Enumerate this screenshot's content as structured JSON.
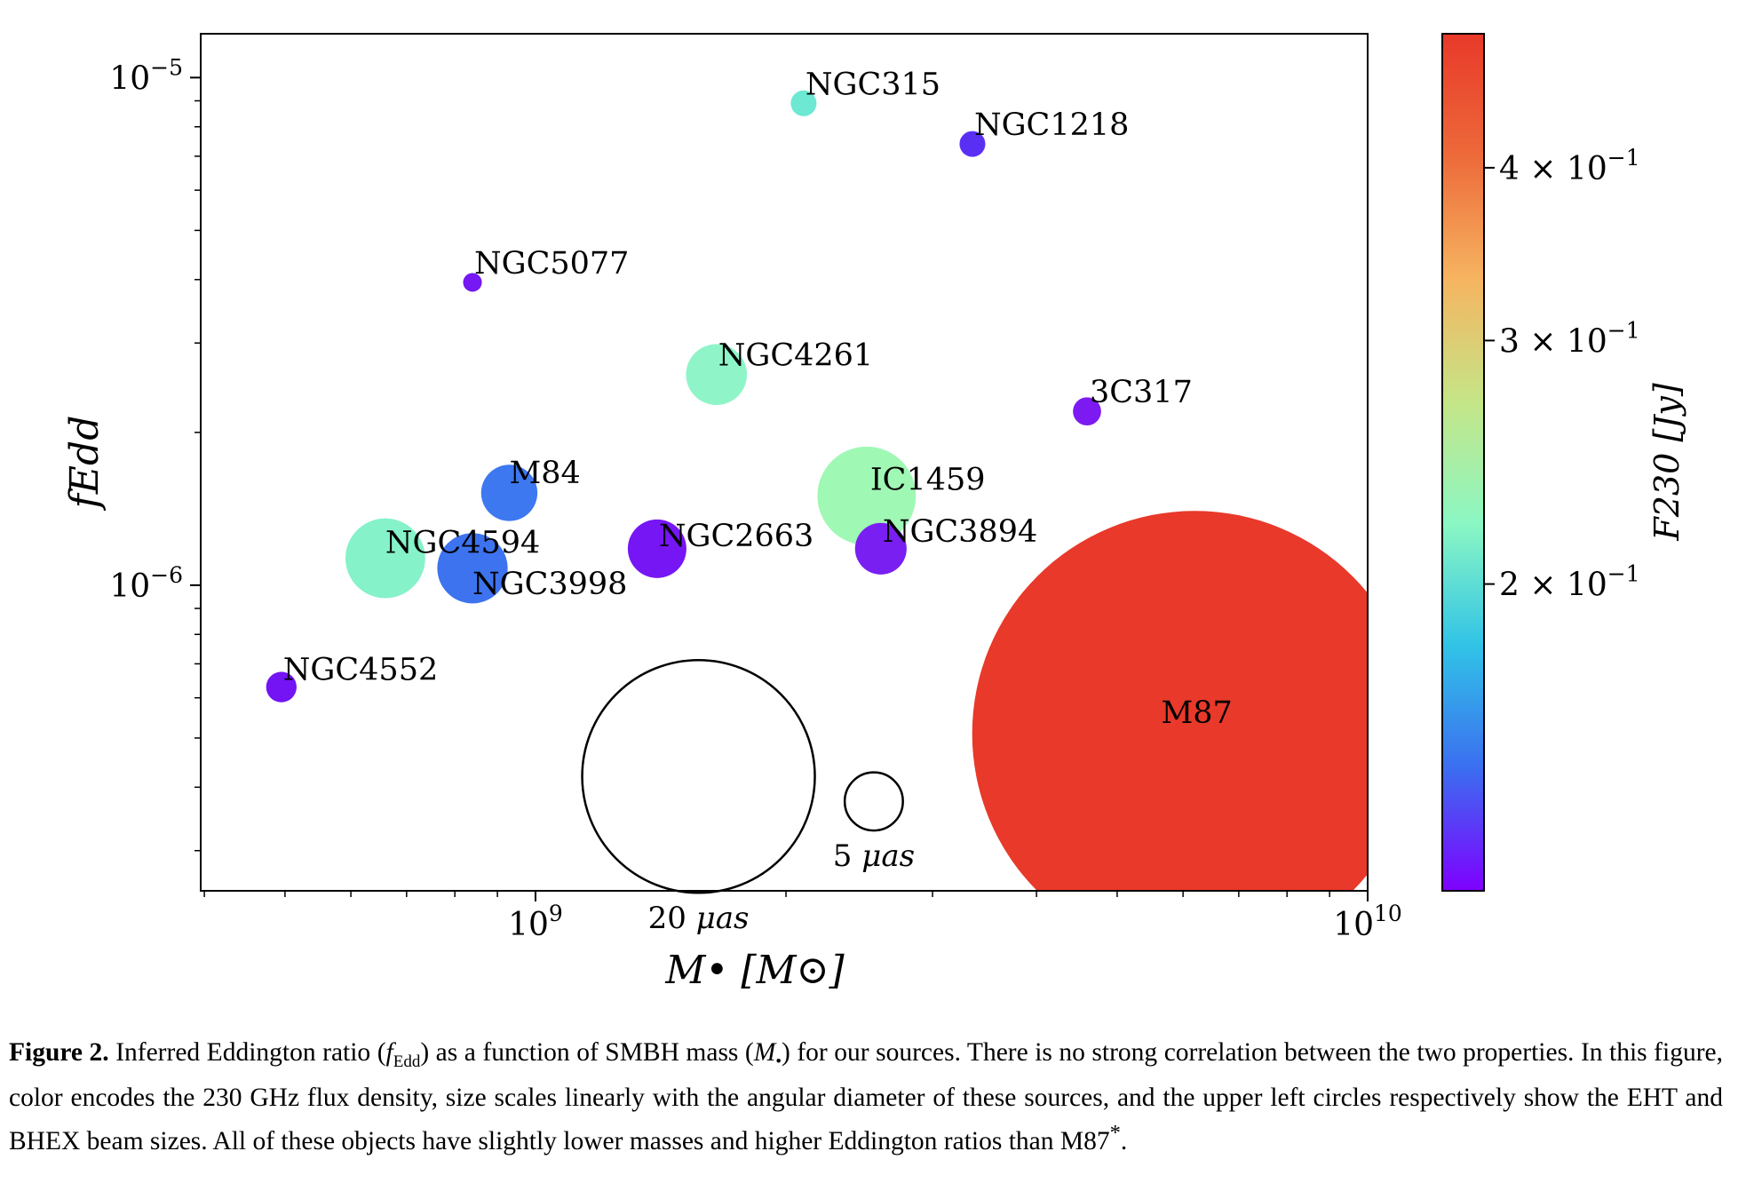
{
  "chart_data": {
    "type": "scatter",
    "x_scale": "log",
    "y_scale": "log",
    "xlabel": "M• [M⊙]",
    "ylabel": "fEdd",
    "xlim": [
      396000000.0,
      10000000000.0
    ],
    "ylim": [
      2.5e-07,
      1.22e-05
    ],
    "x_ticks": [
      {
        "label_base": "10",
        "label_exp": "9",
        "value": 1000000000.0
      },
      {
        "label_base": "10",
        "label_exp": "10",
        "value": 10000000000.0
      }
    ],
    "y_ticks": [
      {
        "label_base": "10",
        "label_exp": "−5",
        "value": 1e-05
      },
      {
        "label_base": "10",
        "label_exp": "−6",
        "value": 1e-06
      }
    ],
    "colorbar": {
      "label": "F230 [Jy]",
      "range": [
        0.12,
        0.5
      ],
      "cmap": [
        "#7f00ff",
        "#3b6ef0",
        "#31c3e7",
        "#8bf7c3",
        "#c5e587",
        "#f6b460",
        "#ed6a3a",
        "#e8392a"
      ],
      "ticks": [
        {
          "value": 0.2,
          "label": "2 × 10",
          "exp": "−1"
        },
        {
          "value": 0.3,
          "label": "3 × 10",
          "exp": "−1"
        },
        {
          "value": 0.4,
          "label": "4 × 10",
          "exp": "−1"
        }
      ]
    },
    "points": [
      {
        "name": "NGC315",
        "mass": 2100000000.0,
        "fedd": 8.9e-06,
        "flux": 0.18,
        "color": "#6de8d3",
        "size_uas": 1.1,
        "label_dx": 2,
        "label_dy": -10,
        "label_anchor": "start"
      },
      {
        "name": "NGC1218",
        "mass": 3350000000.0,
        "fedd": 7.4e-06,
        "flux": 0.12,
        "color": "#5a2ff4",
        "size_uas": 1.1,
        "label_dx": 2,
        "label_dy": -10,
        "label_anchor": "start"
      },
      {
        "name": "NGC5077",
        "mass": 840000000.0,
        "fedd": 3.95e-06,
        "flux": 0.12,
        "color": "#7518f3",
        "size_uas": 0.8,
        "label_dx": 2,
        "label_dy": -10,
        "label_anchor": "start"
      },
      {
        "name": "NGC4261",
        "mass": 1650000000.0,
        "fedd": 2.6e-06,
        "flux": 0.21,
        "color": "#8ff5c8",
        "size_uas": 2.6,
        "label_dx": 2,
        "label_dy": -10,
        "label_anchor": "start"
      },
      {
        "name": "3C317",
        "mass": 4600000000.0,
        "fedd": 2.2e-06,
        "flux": 0.12,
        "color": "#7d1af1",
        "size_uas": 1.2,
        "label_dx": 3,
        "label_dy": -10,
        "label_anchor": "start"
      },
      {
        "name": "M84",
        "mass": 930000000.0,
        "fedd": 1.52e-06,
        "flux": 0.15,
        "color": "#3d78f0",
        "size_uas": 2.4,
        "label_dx": 0,
        "label_dy": -11,
        "label_anchor": "start"
      },
      {
        "name": "NGC4594",
        "mass": 660000000.0,
        "fedd": 1.13e-06,
        "flux": 0.21,
        "color": "#85f2c9",
        "size_uas": 3.4,
        "label_dx": 0,
        "label_dy": -6,
        "label_anchor": "start"
      },
      {
        "name": "NGC3998",
        "mass": 840000000.0,
        "fedd": 1.08e-06,
        "flux": 0.15,
        "color": "#3d73ef",
        "size_uas": 3.0,
        "label_dx": 0,
        "label_dy": 29,
        "label_anchor": "start"
      },
      {
        "name": "NGC2663",
        "mass": 1400000000.0,
        "fedd": 1.18e-06,
        "flux": 0.12,
        "color": "#7616f5",
        "size_uas": 2.5,
        "label_dx": 2,
        "label_dy": -3,
        "label_anchor": "start"
      },
      {
        "name": "NGC3894",
        "mass": 2600000000.0,
        "fedd": 1.18e-06,
        "flux": 0.12,
        "color": "#7a1ff2",
        "size_uas": 2.2,
        "label_dx": 2,
        "label_dy": -8,
        "label_anchor": "start"
      },
      {
        "name": "IC1459",
        "mass": 2500000000.0,
        "fedd": 1.5e-06,
        "flux": 0.24,
        "color": "#a0f8b5",
        "size_uas": 4.2,
        "label_dx": 4,
        "label_dy": -7,
        "label_anchor": "start"
      },
      {
        "name": "NGC4552",
        "mass": 495000000.0,
        "fedd": 6.3e-07,
        "flux": 0.12,
        "color": "#7413f4",
        "size_uas": 1.3,
        "label_dx": 2,
        "label_dy": -8,
        "label_anchor": "start"
      },
      {
        "name": "M87",
        "mass": 6200000000.0,
        "fedd": 5.1e-07,
        "flux": 0.5,
        "color": "#e8392a",
        "size_uas": 19.0,
        "label_dx": -38,
        "label_dy": -12,
        "label_anchor": "start"
      }
    ],
    "beam_circles": [
      {
        "label_num": "20",
        "label_unit": "μas",
        "mass": 1570000000.0,
        "fedd": 4.2e-07,
        "size_uas": 20
      },
      {
        "label_num": "5",
        "label_unit": "μas",
        "mass": 2550000000.0,
        "fedd": 3.75e-07,
        "size_uas": 5
      }
    ]
  },
  "caption": {
    "label": "Figure 2.",
    "text_1": " Inferred Eddington ratio (",
    "sym_f": "f",
    "sub_edd": "Edd",
    "text_2": ") as a function of SMBH mass (",
    "sym_m": "M",
    "sub_bullet": "•",
    "text_3": ") for our sources. There is no strong correlation between the two properties. In this figure, color encodes the 230 GHz flux density, size scales linearly with the angular diameter of these sources, and the upper left circles respectively show the EHT and BHEX beam sizes. All of these objects have slightly lower masses and higher Eddington ratios than M87",
    "sup_star": "*",
    "text_4": "."
  }
}
